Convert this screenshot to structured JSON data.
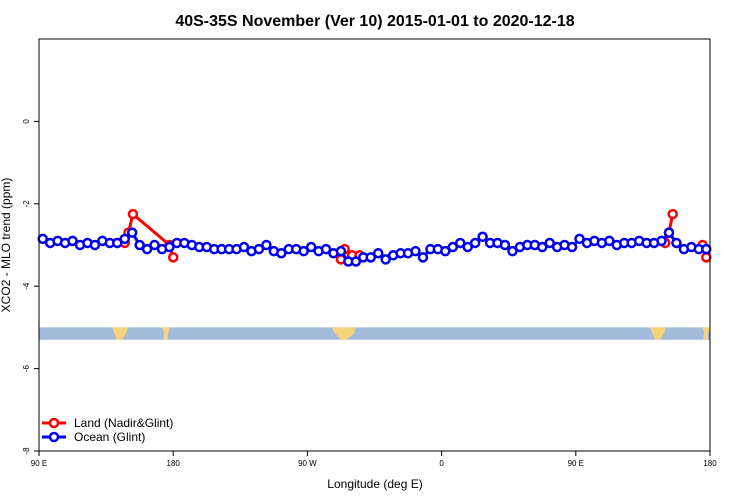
{
  "chart_data": {
    "type": "line",
    "title": "40S-35S November (Ver 10)   2015-01-01 to 2020-12-18",
    "xlabel": "Longitude (deg E)",
    "ylabel": "XCO2 - MLO trend (ppm)",
    "xlim": [
      90,
      540
    ],
    "ylim": [
      -8,
      2
    ],
    "x_ticks": [
      {
        "value": 90,
        "label": "90 E"
      },
      {
        "value": 180,
        "label": "180"
      },
      {
        "value": 270,
        "label": "90 W"
      },
      {
        "value": 360,
        "label": "0"
      },
      {
        "value": 450,
        "label": "90 E"
      },
      {
        "value": 540,
        "label": "180"
      }
    ],
    "y_ticks": [
      {
        "value": 0,
        "label": "0"
      },
      {
        "value": -2,
        "label": "-2"
      },
      {
        "value": -4,
        "label": "-4"
      },
      {
        "value": -6,
        "label": "-6"
      },
      {
        "value": -8,
        "label": "-8"
      }
    ],
    "grid": false,
    "legend_position": "bottom-left",
    "land_band": {
      "y_top": -5.0,
      "y_bottom": -5.3,
      "color": "#a3bbdb",
      "land_color": "#f5d37a"
    },
    "series": [
      {
        "name": "Land (Nadir&Glint)",
        "color": "#ff0000",
        "segments": [
          {
            "x": [
              147.5,
              150,
              153,
              177.5,
              180
            ],
            "y": [
              -2.95,
              -2.7,
              -2.25,
              -3.0,
              -3.3
            ]
          },
          {
            "x": [
              292.5,
              295,
              300,
              305
            ],
            "y": [
              -3.35,
              -3.1,
              -3.25,
              -3.25
            ]
          },
          {
            "x": [
              510,
              512.5,
              515
            ],
            "y": [
              -2.95,
              -2.7,
              -2.25
            ]
          },
          {
            "x": [
              535,
              537.5
            ],
            "y": [
              -3.0,
              -3.3
            ]
          }
        ]
      },
      {
        "name": "Ocean (Glint)",
        "color": "#0000ee",
        "x": [
          92.5,
          97.5,
          102.5,
          107.5,
          112.5,
          117.5,
          122.5,
          127.5,
          132.5,
          137.5,
          142.5,
          147.5,
          152.5,
          157.5,
          162.5,
          167.5,
          172.5,
          177.5,
          182.5,
          187.5,
          192.5,
          197.5,
          202.5,
          207.5,
          212.5,
          217.5,
          222.5,
          227.5,
          232.5,
          237.5,
          242.5,
          247.5,
          252.5,
          257.5,
          262.5,
          267.5,
          272.5,
          277.5,
          282.5,
          287.5,
          292.5,
          297.5,
          302.5,
          307.5,
          312.5,
          317.5,
          322.5,
          327.5,
          332.5,
          337.5,
          342.5,
          347.5,
          352.5,
          357.5,
          362.5,
          367.5,
          372.5,
          377.5,
          382.5,
          387.5,
          392.5,
          397.5,
          402.5,
          407.5,
          412.5,
          417.5,
          422.5,
          427.5,
          432.5,
          437.5,
          442.5,
          447.5,
          452.5,
          457.5,
          462.5,
          467.5,
          472.5,
          477.5,
          482.5,
          487.5,
          492.5,
          497.5,
          502.5,
          507.5,
          512.5,
          517.5,
          522.5,
          527.5,
          532.5,
          537.5
        ],
        "y": [
          -2.85,
          -2.95,
          -2.9,
          -2.95,
          -2.9,
          -3.0,
          -2.95,
          -3.0,
          -2.9,
          -2.95,
          -2.95,
          -2.85,
          -2.7,
          -3.0,
          -3.1,
          -3.0,
          -3.1,
          -3.05,
          -2.95,
          -2.95,
          -3.0,
          -3.05,
          -3.05,
          -3.1,
          -3.1,
          -3.1,
          -3.1,
          -3.05,
          -3.15,
          -3.1,
          -3.0,
          -3.15,
          -3.2,
          -3.1,
          -3.1,
          -3.15,
          -3.05,
          -3.15,
          -3.1,
          -3.2,
          -3.15,
          -3.4,
          -3.4,
          -3.3,
          -3.3,
          -3.2,
          -3.35,
          -3.25,
          -3.2,
          -3.2,
          -3.15,
          -3.3,
          -3.1,
          -3.1,
          -3.15,
          -3.05,
          -2.95,
          -3.05,
          -2.95,
          -2.8,
          -2.95,
          -2.95,
          -3.0,
          -3.15,
          -3.05,
          -3.0,
          -3.0,
          -3.05,
          -2.95,
          -3.05,
          -3.0,
          -3.05,
          -2.85,
          -2.95,
          -2.9,
          -2.95,
          -2.9,
          -3.0,
          -2.95,
          -2.95,
          -2.9,
          -2.95,
          -2.95,
          -2.9,
          -2.7,
          -2.95,
          -3.1,
          -3.05,
          -3.1,
          -3.1
        ]
      }
    ]
  }
}
